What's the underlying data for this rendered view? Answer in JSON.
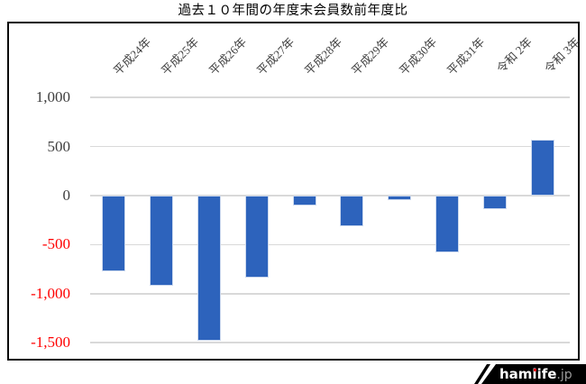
{
  "title": "過去１０年間の年度末会員数前年度比",
  "chart_data": {
    "type": "bar",
    "title": "過去１０年間の年度末会員数前年度比",
    "categories": [
      "平成24年",
      "平成25年",
      "平成26年",
      "平成27年",
      "平成28年",
      "平成29年",
      "平成30年",
      "平成31年",
      "令和 2年",
      "令和 3年"
    ],
    "values": [
      -770,
      -920,
      -1480,
      -840,
      -100,
      -310,
      -50,
      -580,
      -140,
      570
    ],
    "xlabel": "",
    "ylabel": "",
    "ylim": [
      -1500,
      1000
    ],
    "y_ticks": [
      {
        "value": 1000,
        "label": "1,000"
      },
      {
        "value": 500,
        "label": "500"
      },
      {
        "value": 0,
        "label": "0"
      },
      {
        "value": -500,
        "label": "-500"
      },
      {
        "value": -1000,
        "label": "-1,000"
      },
      {
        "value": -1500,
        "label": "-1,500"
      }
    ],
    "grid": true,
    "legend": "none",
    "category_label_rotation_deg": 45,
    "bar_color": "#2d63bc",
    "gridline_color": "#d9d9d9",
    "tick_color_positive": "#3d3d3d",
    "tick_color_negative": "#ff0000",
    "frame_border_color": "#0a0a0a"
  },
  "watermark": {
    "brand": "hamlife",
    "suffix": ".jp",
    "background": "#000000",
    "brand_color": "#ffffff",
    "suffix_color": "#9a9a9a",
    "i_dot_color": "#e60012"
  }
}
